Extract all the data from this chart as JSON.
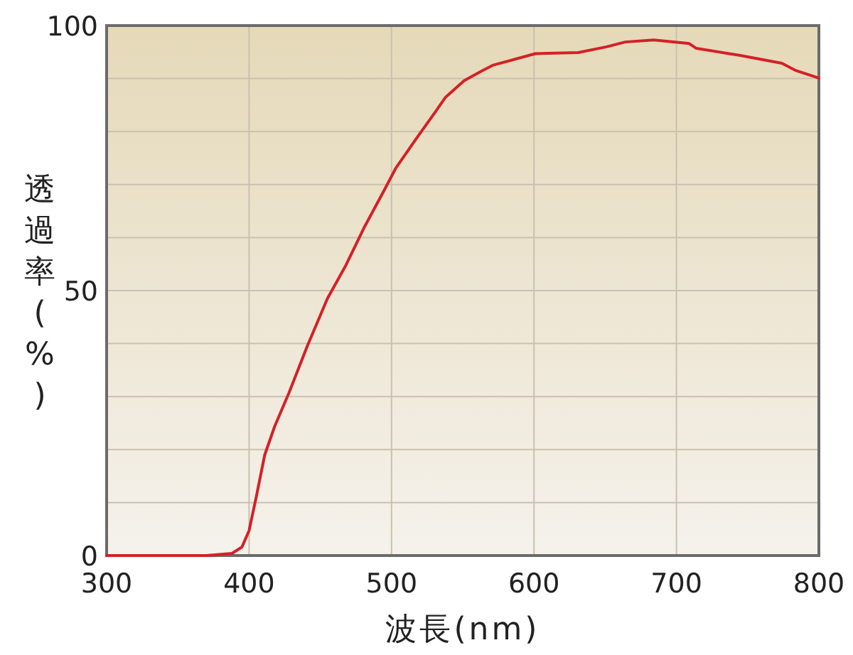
{
  "chart_data": {
    "type": "line",
    "xlabel": "波長(nm)",
    "ylabel": "透過率(%)",
    "xlim": [
      300,
      800
    ],
    "ylim": [
      0,
      100
    ],
    "xticks": [
      300,
      400,
      500,
      600,
      700,
      800
    ],
    "yticks": [
      0,
      {
        "value": 10,
        "label": null
      },
      {
        "value": 20,
        "label": null
      },
      {
        "value": 30,
        "label": null
      },
      {
        "value": 40,
        "label": null
      },
      50,
      {
        "value": 60,
        "label": null
      },
      {
        "value": 70,
        "label": null
      },
      {
        "value": 80,
        "label": null
      },
      {
        "value": 90,
        "label": null
      },
      100
    ],
    "grid": true,
    "series": [
      {
        "color": "#d42027",
        "x": [
          300,
          340,
          370,
          388,
          395,
          400,
          405,
          411,
          418,
          428,
          441,
          455,
          468,
          481,
          495,
          503,
          518,
          531,
          538,
          551,
          563,
          571,
          601,
          631,
          651,
          664,
          684,
          709,
          714,
          744,
          774,
          784,
          800
        ],
        "values": [
          0,
          0,
          0,
          0.4,
          1.6,
          4.7,
          11,
          19,
          24.4,
          30.7,
          39.6,
          48.5,
          54.8,
          62,
          69,
          73.1,
          78.9,
          83.8,
          86.5,
          89.6,
          91.4,
          92.5,
          94.7,
          94.9,
          96,
          96.9,
          97.3,
          96.6,
          95.7,
          94.4,
          92.9,
          91.5,
          90.1
        ]
      }
    ]
  }
}
